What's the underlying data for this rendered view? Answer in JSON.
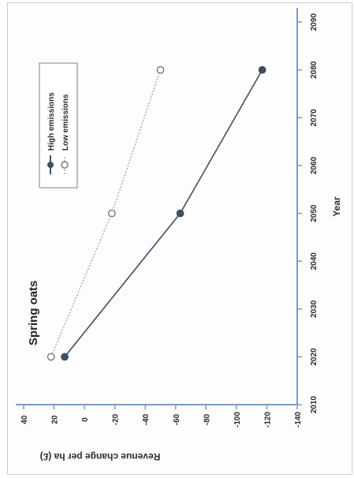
{
  "chart_data": {
    "type": "line",
    "title": "Spring oats",
    "xlabel": "Year",
    "ylabel": "Revenue change per ha (£)",
    "xlim": [
      2010,
      2090
    ],
    "ylim": [
      -140,
      40
    ],
    "x_ticks": [
      2010,
      2020,
      2030,
      2040,
      2050,
      2060,
      2070,
      2080,
      2090
    ],
    "y_ticks": [
      40,
      20,
      0,
      -20,
      -40,
      -60,
      -80,
      -100,
      -120,
      -140
    ],
    "orientation": "rotated 90° clockwise (x axis on the right, y axis along the bottom)",
    "grid": false,
    "legend": "upper-left box",
    "series": [
      {
        "name": "High emissions",
        "x": [
          2020,
          2050,
          2080
        ],
        "y": [
          13,
          -63,
          -117
        ],
        "color": "#3c5064",
        "marker": "filled-circle",
        "line": "solid"
      },
      {
        "name": "Low emissions",
        "x": [
          2020,
          2050,
          2080
        ],
        "y": [
          22,
          -18,
          -50
        ],
        "color": "#9aa2aa",
        "marker": "open-circle",
        "line": "dotted"
      }
    ],
    "colors": {
      "axis": "#7a9bbf",
      "frame": "#c9ccd3"
    }
  }
}
